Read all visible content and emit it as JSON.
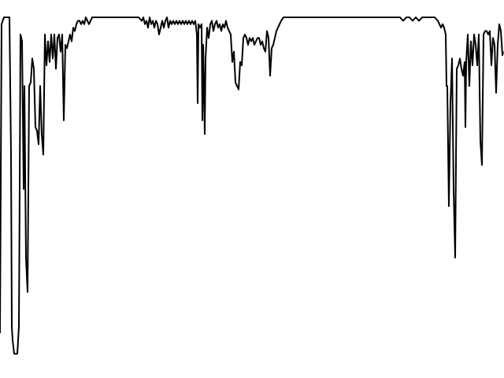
{
  "chart_data": {
    "type": "line",
    "title": "",
    "xlabel": "",
    "ylabel": "",
    "xlim": [
      0,
      639
    ],
    "ylim": [
      0,
      1
    ],
    "grid": false,
    "axes_visible": false,
    "line_color": "#000000",
    "series": [
      {
        "points": [
          [
            0,
            0.08
          ],
          [
            2,
            0.98
          ],
          [
            5,
            1.0
          ],
          [
            8,
            1.0
          ],
          [
            12,
            1.0
          ],
          [
            14,
            0.6
          ],
          [
            15,
            0.1
          ],
          [
            16,
            0.06
          ],
          [
            18,
            0.02
          ],
          [
            20,
            0.02
          ],
          [
            22,
            0.02
          ],
          [
            24,
            0.1
          ],
          [
            25,
            0.5
          ],
          [
            26,
            0.95
          ],
          [
            28,
            0.93
          ],
          [
            30,
            0.5
          ],
          [
            31,
            0.8
          ],
          [
            33,
            0.3
          ],
          [
            35,
            0.2
          ],
          [
            37,
            0.8
          ],
          [
            39,
            0.81
          ],
          [
            41,
            0.88
          ],
          [
            43,
            0.85
          ],
          [
            45,
            0.68
          ],
          [
            47,
            0.67
          ],
          [
            49,
            0.63
          ],
          [
            51,
            0.8
          ],
          [
            53,
            0.66
          ],
          [
            55,
            0.6
          ],
          [
            57,
            0.95
          ],
          [
            59,
            0.86
          ],
          [
            61,
            0.93
          ],
          [
            63,
            0.87
          ],
          [
            65,
            0.95
          ],
          [
            67,
            0.88
          ],
          [
            69,
            0.95
          ],
          [
            71,
            0.85
          ],
          [
            73,
            0.94
          ],
          [
            75,
            0.95
          ],
          [
            77,
            0.9
          ],
          [
            79,
            0.95
          ],
          [
            81,
            0.7
          ],
          [
            83,
            0.92
          ],
          [
            85,
            0.91
          ],
          [
            87,
            0.93
          ],
          [
            89,
            0.95
          ],
          [
            91,
            0.93
          ],
          [
            93,
            0.97
          ],
          [
            95,
            0.96
          ],
          [
            97,
            0.98
          ],
          [
            99,
            0.99
          ],
          [
            101,
            0.99
          ],
          [
            103,
            0.98
          ],
          [
            105,
            0.99
          ],
          [
            107,
            0.98
          ],
          [
            109,
            1.0
          ],
          [
            111,
            0.99
          ],
          [
            113,
            0.98
          ],
          [
            115,
            0.99
          ],
          [
            117,
            1.0
          ],
          [
            120,
            1.0
          ],
          [
            124,
            1.0
          ],
          [
            128,
            1.0
          ],
          [
            132,
            1.0
          ],
          [
            136,
            1.0
          ],
          [
            140,
            1.0
          ],
          [
            144,
            1.0
          ],
          [
            148,
            1.0
          ],
          [
            152,
            1.0
          ],
          [
            156,
            1.0
          ],
          [
            160,
            1.0
          ],
          [
            164,
            1.0
          ],
          [
            168,
            1.0
          ],
          [
            172,
            1.0
          ],
          [
            176,
            1.0
          ],
          [
            180,
            0.99
          ],
          [
            182,
            1.0
          ],
          [
            184,
            0.98
          ],
          [
            186,
            0.99
          ],
          [
            188,
            0.97
          ],
          [
            190,
            1.0
          ],
          [
            192,
            0.98
          ],
          [
            194,
            0.99
          ],
          [
            196,
            0.97
          ],
          [
            198,
            0.99
          ],
          [
            200,
            0.98
          ],
          [
            202,
            0.95
          ],
          [
            204,
            0.97
          ],
          [
            206,
            0.99
          ],
          [
            208,
            0.97
          ],
          [
            210,
            0.99
          ],
          [
            212,
            1.0
          ],
          [
            214,
            0.97
          ],
          [
            216,
            0.99
          ],
          [
            218,
            0.98
          ],
          [
            220,
            0.99
          ],
          [
            222,
            0.98
          ],
          [
            224,
            0.99
          ],
          [
            226,
            0.98
          ],
          [
            228,
            0.99
          ],
          [
            230,
            0.98
          ],
          [
            232,
            0.99
          ],
          [
            234,
            0.98
          ],
          [
            236,
            0.99
          ],
          [
            238,
            0.98
          ],
          [
            240,
            0.99
          ],
          [
            242,
            0.98
          ],
          [
            244,
            0.99
          ],
          [
            246,
            0.98
          ],
          [
            248,
            0.99
          ],
          [
            250,
            0.95
          ],
          [
            251,
            0.75
          ],
          [
            252,
            0.98
          ],
          [
            254,
            0.97
          ],
          [
            256,
            0.98
          ],
          [
            257,
            0.7
          ],
          [
            258,
            0.92
          ],
          [
            260,
            0.66
          ],
          [
            261,
            0.88
          ],
          [
            263,
            0.97
          ],
          [
            265,
            0.94
          ],
          [
            267,
            0.98
          ],
          [
            269,
            0.99
          ],
          [
            271,
            0.96
          ],
          [
            273,
            0.98
          ],
          [
            275,
            0.99
          ],
          [
            277,
            0.97
          ],
          [
            279,
            0.98
          ],
          [
            281,
            0.96
          ],
          [
            283,
            0.98
          ],
          [
            285,
            0.97
          ],
          [
            287,
            0.99
          ],
          [
            289,
            0.97
          ],
          [
            291,
            0.96
          ],
          [
            293,
            0.95
          ],
          [
            295,
            0.87
          ],
          [
            297,
            0.9
          ],
          [
            299,
            0.81
          ],
          [
            301,
            0.8
          ],
          [
            303,
            0.79
          ],
          [
            305,
            0.87
          ],
          [
            307,
            0.86
          ],
          [
            309,
            0.94
          ],
          [
            311,
            0.95
          ],
          [
            313,
            0.94
          ],
          [
            315,
            0.92
          ],
          [
            317,
            0.94
          ],
          [
            319,
            0.93
          ],
          [
            321,
            0.94
          ],
          [
            323,
            0.92
          ],
          [
            325,
            0.93
          ],
          [
            327,
            0.94
          ],
          [
            329,
            0.94
          ],
          [
            331,
            0.92
          ],
          [
            333,
            0.93
          ],
          [
            335,
            0.91
          ],
          [
            337,
            0.9
          ],
          [
            339,
            0.96
          ],
          [
            341,
            0.94
          ],
          [
            343,
            0.83
          ],
          [
            345,
            0.91
          ],
          [
            347,
            0.92
          ],
          [
            349,
            0.94
          ],
          [
            351,
            0.96
          ],
          [
            353,
            0.97
          ],
          [
            355,
            0.98
          ],
          [
            357,
            0.99
          ],
          [
            360,
            1.0
          ],
          [
            364,
            1.0
          ],
          [
            368,
            1.0
          ],
          [
            372,
            1.0
          ],
          [
            376,
            1.0
          ],
          [
            380,
            1.0
          ],
          [
            384,
            1.0
          ],
          [
            388,
            1.0
          ],
          [
            392,
            1.0
          ],
          [
            396,
            1.0
          ],
          [
            400,
            1.0
          ],
          [
            404,
            1.0
          ],
          [
            408,
            1.0
          ],
          [
            412,
            1.0
          ],
          [
            416,
            1.0
          ],
          [
            420,
            1.0
          ],
          [
            424,
            1.0
          ],
          [
            428,
            1.0
          ],
          [
            432,
            1.0
          ],
          [
            436,
            1.0
          ],
          [
            440,
            1.0
          ],
          [
            444,
            1.0
          ],
          [
            448,
            1.0
          ],
          [
            452,
            1.0
          ],
          [
            456,
            1.0
          ],
          [
            460,
            1.0
          ],
          [
            464,
            1.0
          ],
          [
            468,
            1.0
          ],
          [
            472,
            1.0
          ],
          [
            476,
            1.0
          ],
          [
            480,
            1.0
          ],
          [
            484,
            1.0
          ],
          [
            488,
            1.0
          ],
          [
            492,
            1.0
          ],
          [
            496,
            1.0
          ],
          [
            500,
            1.0
          ],
          [
            504,
            1.0
          ],
          [
            508,
            1.0
          ],
          [
            512,
            0.99
          ],
          [
            516,
            1.0
          ],
          [
            520,
            1.0
          ],
          [
            524,
            0.99
          ],
          [
            528,
            1.0
          ],
          [
            532,
            0.99
          ],
          [
            536,
            1.0
          ],
          [
            540,
            1.0
          ],
          [
            544,
            1.0
          ],
          [
            548,
            1.0
          ],
          [
            552,
            1.0
          ],
          [
            556,
            0.99
          ],
          [
            558,
            0.98
          ],
          [
            560,
            0.97
          ],
          [
            562,
            0.98
          ],
          [
            564,
            0.97
          ],
          [
            566,
            0.95
          ],
          [
            567,
            0.8
          ],
          [
            568,
            0.8
          ],
          [
            570,
            0.45
          ],
          [
            572,
            0.75
          ],
          [
            574,
            0.88
          ],
          [
            576,
            0.5
          ],
          [
            578,
            0.3
          ],
          [
            580,
            0.85
          ],
          [
            582,
            0.86
          ],
          [
            584,
            0.88
          ],
          [
            586,
            0.85
          ],
          [
            588,
            0.83
          ],
          [
            590,
            0.87
          ],
          [
            591,
            0.68
          ],
          [
            592,
            0.87
          ],
          [
            594,
            0.95
          ],
          [
            596,
            0.8
          ],
          [
            598,
            0.93
          ],
          [
            600,
            0.86
          ],
          [
            602,
            0.95
          ],
          [
            604,
            0.92
          ],
          [
            606,
            0.86
          ],
          [
            608,
            0.95
          ],
          [
            610,
            0.64
          ],
          [
            612,
            0.57
          ],
          [
            614,
            0.95
          ],
          [
            616,
            0.96
          ],
          [
            618,
            0.96
          ],
          [
            620,
            0.95
          ],
          [
            622,
            0.96
          ],
          [
            624,
            0.86
          ],
          [
            626,
            0.94
          ],
          [
            628,
            0.92
          ],
          [
            630,
            0.78
          ],
          [
            632,
            0.92
          ],
          [
            634,
            0.98
          ],
          [
            636,
            0.96
          ],
          [
            638,
            0.89
          ],
          [
            639,
            0.9
          ]
        ]
      }
    ]
  }
}
